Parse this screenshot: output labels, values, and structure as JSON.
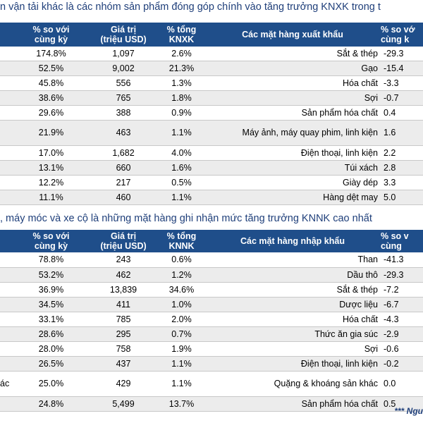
{
  "export_section": {
    "title": "n vận tải khác là các nhóm sản phẩm đóng góp chính vào tăng trưởng KNXK trong t",
    "headers": {
      "pct_yoy": "% so với\ncùng kỳ",
      "value": "Giá trị\n(triệu USD)",
      "pct_total": "% tổng\nKNXK",
      "item": "Các mặt hàng xuất khẩu",
      "pct_yoy_right": "% so vớ\ncùng k"
    },
    "rows": [
      {
        "left": "",
        "pct_yoy": "174.8%",
        "value": "1,097",
        "pct_total": "2.6%",
        "item": "Sắt & thép",
        "pct_right": "-29.3"
      },
      {
        "left": "",
        "pct_yoy": "52.5%",
        "value": "9,002",
        "pct_total": "21.3%",
        "item": "Gạo",
        "pct_right": "-15.4"
      },
      {
        "left": "",
        "pct_yoy": "45.8%",
        "value": "556",
        "pct_total": "1.3%",
        "item": "Hóa chất",
        "pct_right": "-3.3"
      },
      {
        "left": "",
        "pct_yoy": "38.6%",
        "value": "765",
        "pct_total": "1.8%",
        "item": "Sợi",
        "pct_right": "-0.7"
      },
      {
        "left": "",
        "pct_yoy": "29.6%",
        "value": "388",
        "pct_total": "0.9%",
        "item": "Sản phẩm hóa chất",
        "pct_right": "0.4"
      },
      {
        "left": "",
        "pct_yoy": "21.9%",
        "value": "463",
        "pct_total": "1.1%",
        "item": "Máy ảnh, máy quay phim, linh kiện",
        "pct_right": "1.6"
      },
      {
        "left": "",
        "pct_yoy": "17.0%",
        "value": "1,682",
        "pct_total": "4.0%",
        "item": "Điện thoại, linh kiện",
        "pct_right": "2.2"
      },
      {
        "left": "",
        "pct_yoy": "13.1%",
        "value": "660",
        "pct_total": "1.6%",
        "item": "Túi xách",
        "pct_right": "2.8"
      },
      {
        "left": "",
        "pct_yoy": "12.2%",
        "value": "217",
        "pct_total": "0.5%",
        "item": "Giày dép",
        "pct_right": "3.3"
      },
      {
        "left": "",
        "pct_yoy": "11.1%",
        "value": "460",
        "pct_total": "1.1%",
        "item": "Hàng dệt may",
        "pct_right": "5.0"
      }
    ]
  },
  "import_section": {
    "title": ", máy móc và xe cộ là những mặt hàng ghi nhận mức tăng trưởng KNNK cao nhất",
    "headers": {
      "pct_yoy": "% so với\ncùng kỳ",
      "value": "Giá trị\n(triệu USD)",
      "pct_total": "% tổng\nKNNK",
      "item": "Các mặt hàng nhập khẩu",
      "pct_yoy_right": "% so v\ncùng"
    },
    "rows": [
      {
        "left": "",
        "pct_yoy": "78.8%",
        "value": "243",
        "pct_total": "0.6%",
        "item": "Than",
        "pct_right": "-41.3"
      },
      {
        "left": "",
        "pct_yoy": "53.2%",
        "value": "462",
        "pct_total": "1.2%",
        "item": "Dầu thô",
        "pct_right": "-29.3"
      },
      {
        "left": "",
        "pct_yoy": "36.9%",
        "value": "13,839",
        "pct_total": "34.6%",
        "item": "Sắt & thép",
        "pct_right": "-7.2"
      },
      {
        "left": "",
        "pct_yoy": "34.5%",
        "value": "411",
        "pct_total": "1.0%",
        "item": "Dược liệu",
        "pct_right": "-6.7"
      },
      {
        "left": "",
        "pct_yoy": "33.1%",
        "value": "785",
        "pct_total": "2.0%",
        "item": "Hóa chất",
        "pct_right": "-4.3"
      },
      {
        "left": "",
        "pct_yoy": "28.6%",
        "value": "295",
        "pct_total": "0.7%",
        "item": "Thức ăn gia súc",
        "pct_right": "-2.9"
      },
      {
        "left": "",
        "pct_yoy": "28.0%",
        "value": "758",
        "pct_total": "1.9%",
        "item": "Sợi",
        "pct_right": "-0.6"
      },
      {
        "left": "",
        "pct_yoy": "26.5%",
        "value": "437",
        "pct_total": "1.1%",
        "item": "Điện thoại, linh kiện",
        "pct_right": "-0.2"
      },
      {
        "left": "ác",
        "pct_yoy": "25.0%",
        "value": "429",
        "pct_total": "1.1%",
        "item": "Quặng & khoáng sản khác",
        "pct_right": "0.0"
      },
      {
        "left": "",
        "pct_yoy": "24.8%",
        "value": "5,499",
        "pct_total": "13.7%",
        "item": "Sản phẩm hóa chất",
        "pct_right": "0.5"
      }
    ]
  },
  "footer": "*** Ngu"
}
